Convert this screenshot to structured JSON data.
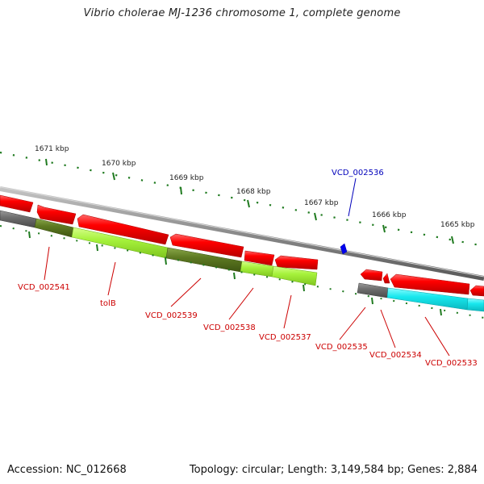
{
  "title": "Vibrio cholerae MJ-1236 chromosome 1, complete genome",
  "accession": "Accession: NC_012668",
  "summary": "Topology: circular; Length: 3,149,584 bp; Genes: 2,884",
  "scale": [
    {
      "label": "1671 kbp",
      "kbp": 1671
    },
    {
      "label": "1670 kbp",
      "kbp": 1670
    },
    {
      "label": "1669 kbp",
      "kbp": 1669
    },
    {
      "label": "1668 kbp",
      "kbp": 1668
    },
    {
      "label": "1667 kbp",
      "kbp": 1667
    },
    {
      "label": "1666 kbp",
      "kbp": 1666
    },
    {
      "label": "1665 kbp",
      "kbp": 1665
    }
  ],
  "genes": [
    {
      "label": "VCD_002541",
      "color": "#cc0000"
    },
    {
      "label": "tolB",
      "color": "#cc0000"
    },
    {
      "label": "VCD_002539",
      "color": "#cc0000"
    },
    {
      "label": "VCD_002538",
      "color": "#cc0000"
    },
    {
      "label": "VCD_002537",
      "color": "#cc0000"
    },
    {
      "label": "VCD_002536",
      "color": "#0000bb"
    },
    {
      "label": "VCD_002535",
      "color": "#cc0000"
    },
    {
      "label": "VCD_002534",
      "color": "#cc0000"
    },
    {
      "label": "VCD_002533",
      "color": "#cc0000"
    }
  ],
  "colors": {
    "forward_cds": "#ee0000",
    "reverse_cds": "#0000ee",
    "cog_grey": "#6f6f6f",
    "cog_dark_olive": "#5e7a22",
    "cog_lime": "#a6f23c",
    "cog_cyan": "#18e8ee",
    "backbone": "#8a8a8a",
    "scale_ticks": "#1f7a1f"
  }
}
